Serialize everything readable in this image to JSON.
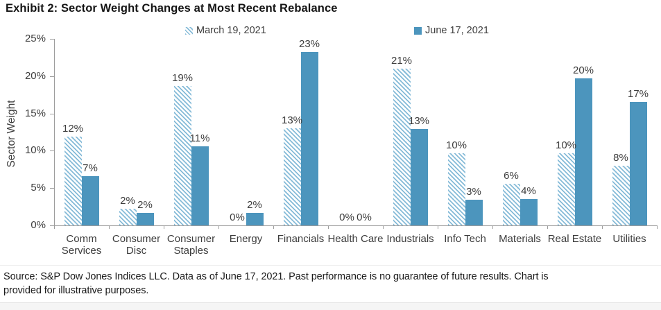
{
  "title": "Exhibit 2: Sector Weight Changes at Most Recent Rebalance",
  "footer": {
    "lines": [
      "Source: S&P Dow Jones Indices LLC. Data as of June 17, 2021. Past performance is no guarantee of future results. Chart is",
      "provided for illustrative purposes."
    ]
  },
  "chart_data": {
    "type": "bar",
    "title": "Exhibit 2: Sector Weight Changes at Most Recent Rebalance",
    "xlabel": "",
    "ylabel": "Sector Weight",
    "ylim": [
      0,
      25
    ],
    "ytick_values": [
      0,
      5,
      10,
      15,
      20,
      25
    ],
    "ytick_labels": [
      "0%",
      "5%",
      "10%",
      "15%",
      "20%",
      "25%"
    ],
    "grid": false,
    "legend_position": "top",
    "categories": [
      "Comm Services",
      "Consumer Disc",
      "Consumer Staples",
      "Energy",
      "Financials",
      "Health Care",
      "Industrials",
      "Info Tech",
      "Materials",
      "Real Estate",
      "Utilities"
    ],
    "series": [
      {
        "name": "March 19, 2021",
        "style": "hatched",
        "values": [
          12,
          2,
          19,
          0,
          13,
          0,
          21,
          10,
          6,
          10,
          8
        ],
        "labels": [
          "12%",
          "2%",
          "19%",
          "0%",
          "13%",
          "0%",
          "21%",
          "10%",
          "6%",
          "10%",
          "8%"
        ],
        "render_values": [
          11.9,
          2.2,
          18.7,
          0,
          13.0,
          0,
          21.0,
          9.7,
          5.6,
          9.7,
          8.0
        ]
      },
      {
        "name": "June 17, 2021",
        "style": "solid",
        "values": [
          7,
          2,
          11,
          2,
          23,
          0,
          13,
          3,
          4,
          20,
          17
        ],
        "labels": [
          "7%",
          "2%",
          "11%",
          "2%",
          "23%",
          "0%",
          "13%",
          "3%",
          "4%",
          "20%",
          "17%"
        ],
        "render_values": [
          6.6,
          1.7,
          10.6,
          1.7,
          23.2,
          0,
          12.9,
          3.4,
          3.5,
          19.7,
          16.5
        ]
      }
    ],
    "colors": {
      "solid_bar": "#4c95bd",
      "hatch_stripe": "#86bbd8",
      "axis": "#9d9d9d",
      "text": "#3d3d3d"
    }
  }
}
